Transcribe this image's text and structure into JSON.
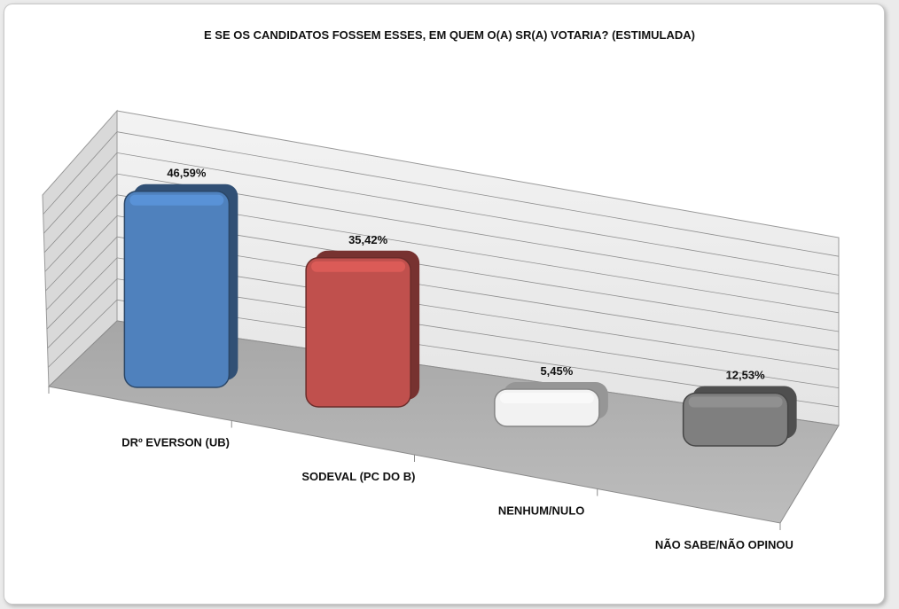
{
  "title": "E SE OS CANDIDATOS FOSSEM ESSES, EM QUEM O(A) SR(A) VOTARIA? (ESTIMULADA)",
  "chart_data": {
    "type": "bar",
    "style": "3d",
    "title": "E SE OS CANDIDATOS FOSSEM ESSES, EM QUEM O(A) SR(A) VOTARIA? (ESTIMULADA)",
    "categories": [
      "DRº EVERSON (UB)",
      "SODEVAL (PC DO B)",
      "NENHUM/NULO",
      "NÃO SABE/NÃO OPINOU"
    ],
    "values": [
      46.59,
      35.42,
      5.45,
      12.53
    ],
    "value_labels": [
      "46,59%",
      "35,42%",
      "5,45%",
      "12,53%"
    ],
    "colors": [
      "#4f81bd",
      "#c0504d",
      "#f2f2f2",
      "#7f7f7f"
    ],
    "ylim": [
      0,
      50
    ],
    "grid": true
  }
}
